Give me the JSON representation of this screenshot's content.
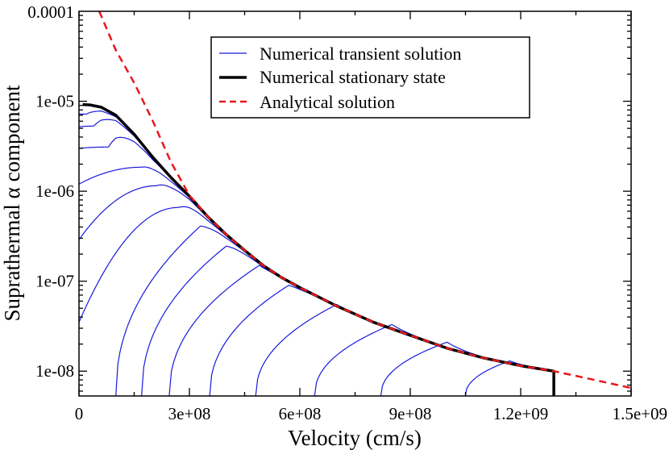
{
  "chart_data": {
    "type": "line",
    "title": "",
    "xlabel": "Velocity (cm/s)",
    "ylabel": "Suprathermal α component",
    "x_scale": "linear",
    "y_scale": "log",
    "xlim": [
      0,
      1500000000
    ],
    "ylim": [
      5.3e-09,
      0.0001
    ],
    "x_ticks": [
      {
        "value": 0,
        "label": "0"
      },
      {
        "value": 300000000,
        "label": "3e+08"
      },
      {
        "value": 600000000,
        "label": "6e+08"
      },
      {
        "value": 900000000,
        "label": "9e+08"
      },
      {
        "value": 1200000000,
        "label": "1.2e+09"
      },
      {
        "value": 1500000000,
        "label": "1.5e+09"
      }
    ],
    "y_ticks": [
      {
        "value": 0.0001,
        "label": "0.0001"
      },
      {
        "value": 1e-05,
        "label": "1e-05"
      },
      {
        "value": 1e-06,
        "label": "1e-06"
      },
      {
        "value": 1e-07,
        "label": "1e-07"
      },
      {
        "value": 1e-08,
        "label": "1e-08"
      }
    ],
    "legend": {
      "position": "top-right",
      "entries": [
        {
          "label": "Numerical transient solution",
          "color": "#1a1adc",
          "style": "solid",
          "weight": "thin"
        },
        {
          "label": "Numerical stationary state",
          "color": "#000000",
          "style": "solid",
          "weight": "thick"
        },
        {
          "label": "Analytical solution",
          "color": "#e8181e",
          "style": "dashed",
          "weight": "medium"
        }
      ]
    },
    "analytical": {
      "name": "Analytical solution",
      "color": "#e8181e",
      "x": [
        55000000,
        100000000,
        150000000,
        200000000,
        250000000,
        300000000,
        350000000,
        400000000,
        450000000,
        500000000,
        550000000,
        600000000,
        700000000,
        800000000,
        900000000,
        1000000000,
        1100000000,
        1200000000,
        1290000000,
        1400000000,
        1500000000
      ],
      "y": [
        0.0001,
        3.7e-05,
        1.6e-05,
        6.1e-06,
        2.1e-06,
        9e-07,
        5.2e-07,
        3.3e-07,
        2.2e-07,
        1.5e-07,
        1.1e-07,
        8.5e-08,
        5.3e-08,
        3.5e-08,
        2.5e-08,
        1.8e-08,
        1.4e-08,
        1.15e-08,
        1e-08,
        8e-09,
        6.5e-09
      ]
    },
    "stationary": {
      "name": "Numerical stationary state",
      "color": "#000000",
      "x": [
        10000000,
        30000000,
        60000000,
        100000000,
        150000000,
        200000000,
        250000000,
        300000000,
        350000000,
        400000000,
        450000000,
        500000000,
        550000000,
        600000000,
        700000000,
        800000000,
        900000000,
        1000000000,
        1100000000,
        1200000000,
        1290000000
      ],
      "y": [
        9.2e-06,
        9.1e-06,
        8.6e-06,
        7e-06,
        4.3e-06,
        2.4e-06,
        1.42e-06,
        8.8e-07,
        5.2e-07,
        3.3e-07,
        2.2e-07,
        1.5e-07,
        1.1e-07,
        8.5e-08,
        5.3e-08,
        3.5e-08,
        2.5e-08,
        1.8e-08,
        1.4e-08,
        1.15e-08,
        1e-08
      ],
      "cutoff_x": 1290000000,
      "cutoff_y_bottom": 5.3e-09
    },
    "transient": {
      "name": "Numerical transient solution",
      "color": "#1a1adc",
      "series": [
        {
          "name": "transient-1",
          "start": [
            0,
            7.2e-06
          ],
          "peak": [
            20000000,
            7.2e-06
          ]
        },
        {
          "name": "transient-2",
          "start": [
            0,
            5.2e-06
          ],
          "peak": [
            40000000,
            5.3e-06
          ]
        },
        {
          "name": "transient-3",
          "start": [
            0,
            3e-06
          ],
          "peak": [
            80000000,
            3.1e-06
          ]
        },
        {
          "name": "transient-4",
          "start": [
            0,
            1.2e-06
          ],
          "peak": [
            170000000,
            1.85e-06
          ]
        },
        {
          "name": "transient-5",
          "start": [
            0,
            2.9e-07
          ],
          "peak": [
            210000000,
            1.15e-06
          ]
        },
        {
          "name": "transient-6",
          "start": [
            0,
            3.5e-08
          ],
          "peak": [
            270000000,
            6.6e-07
          ]
        },
        {
          "name": "transient-7",
          "start": [
            100000000,
            5.3e-09
          ],
          "peak": [
            330000000,
            4.1e-07
          ]
        },
        {
          "name": "transient-8",
          "start": [
            170000000,
            5.3e-09
          ],
          "peak": [
            400000000,
            2.45e-07
          ]
        },
        {
          "name": "transient-9",
          "start": [
            245000000,
            5.3e-09
          ],
          "peak": [
            490000000,
            1.5e-07
          ]
        },
        {
          "name": "transient-10",
          "start": [
            355000000,
            5.3e-09
          ],
          "peak": [
            570000000,
            9e-08
          ]
        },
        {
          "name": "transient-11",
          "start": [
            480000000,
            5.3e-09
          ],
          "peak": [
            700000000,
            5.5e-08
          ]
        },
        {
          "name": "transient-12",
          "start": [
            640000000,
            5.3e-09
          ],
          "peak": [
            850000000,
            3.3e-08
          ]
        },
        {
          "name": "transient-13",
          "start": [
            820000000,
            5.3e-09
          ],
          "peak": [
            1000000000,
            2.1e-08
          ]
        },
        {
          "name": "transient-14",
          "start": [
            1050000000,
            5.3e-09
          ],
          "peak": [
            1170000000,
            1.3e-08
          ]
        }
      ]
    }
  }
}
